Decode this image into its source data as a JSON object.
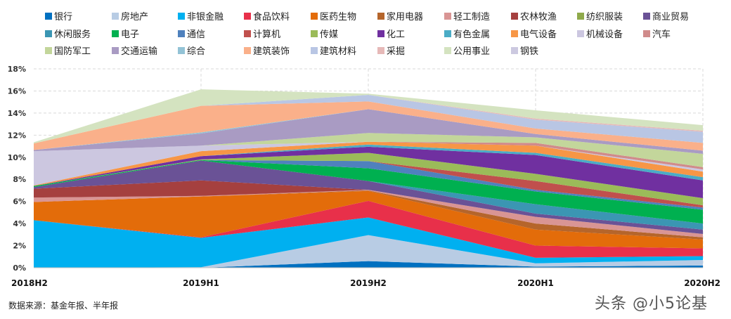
{
  "chart_data": {
    "type": "area",
    "stacked": true,
    "title": "",
    "xlabel": "",
    "ylabel": "",
    "categories": [
      "2018H2",
      "2019H1",
      "2019H2",
      "2020H1",
      "2020H2"
    ],
    "ylim": [
      0,
      18
    ],
    "yticks": [
      "0%",
      "2%",
      "4%",
      "6%",
      "8%",
      "10%",
      "12%",
      "14%",
      "16%",
      "18%"
    ],
    "grid": true,
    "legend_position": "top",
    "series": [
      {
        "name": "银行",
        "color": "#0070c0",
        "values": [
          0,
          0,
          0.6,
          0.1,
          0.2
        ]
      },
      {
        "name": "房地产",
        "color": "#b8cce4",
        "values": [
          0,
          0.05,
          2.35,
          0.3,
          0.5
        ]
      },
      {
        "name": "非银金融",
        "color": "#00b0f0",
        "values": [
          4.3,
          2.65,
          1.6,
          0.5,
          0.35
        ]
      },
      {
        "name": "食品饮料",
        "color": "#e8304a",
        "values": [
          0,
          0.05,
          1.5,
          1.1,
          0.7
        ]
      },
      {
        "name": "医药生物",
        "color": "#e36c0a",
        "values": [
          1.65,
          3.7,
          0.9,
          1.45,
          0.8
        ]
      },
      {
        "name": "家用电器",
        "color": "#b5652b",
        "values": [
          0,
          0,
          0.05,
          0.55,
          0.2
        ]
      },
      {
        "name": "轻工制造",
        "color": "#d99594",
        "values": [
          0.4,
          0.05,
          0.05,
          0.6,
          0.3
        ]
      },
      {
        "name": "农林牧渔",
        "color": "#a5403f",
        "values": [
          0.8,
          1.4,
          0,
          0,
          0
        ]
      },
      {
        "name": "纺织服装",
        "color": "#8faa4b",
        "values": [
          0,
          0,
          0,
          0,
          0
        ]
      },
      {
        "name": "商业贸易",
        "color": "#6a5296",
        "values": [
          0.15,
          1.8,
          0.8,
          0.3,
          0.4
        ]
      },
      {
        "name": "休闲服务",
        "color": "#3b96b3",
        "values": [
          0,
          0,
          0,
          0.85,
          0.55
        ]
      },
      {
        "name": "电子",
        "color": "#00b050",
        "values": [
          0.1,
          0.05,
          1.15,
          1.15,
          1.25
        ]
      },
      {
        "name": "通信",
        "color": "#4f81bd",
        "values": [
          0,
          0,
          0.65,
          0.15,
          0.2
        ]
      },
      {
        "name": "计算机",
        "color": "#c0504d",
        "values": [
          0,
          0,
          0,
          0.8,
          0.2
        ]
      },
      {
        "name": "传媒",
        "color": "#9bbb59",
        "values": [
          0,
          0.05,
          0.75,
          0.65,
          0.65
        ]
      },
      {
        "name": "化工",
        "color": "#7030a0",
        "values": [
          0,
          0.3,
          0.55,
          1.7,
          1.6
        ]
      },
      {
        "name": "有色金属",
        "color": "#4bacc6",
        "values": [
          0,
          0,
          0.2,
          0.2,
          0.3
        ]
      },
      {
        "name": "电气设备",
        "color": "#f79646",
        "values": [
          0.05,
          0.45,
          0.25,
          0.65,
          0.5
        ]
      },
      {
        "name": "机械设备",
        "color": "#ccc7e0",
        "values": [
          3.1,
          0.5,
          0,
          0,
          0.2
        ]
      },
      {
        "name": "汽车",
        "color": "#d08b8b",
        "values": [
          0,
          0,
          0,
          0.25,
          0.2
        ]
      },
      {
        "name": "国防军工",
        "color": "#c3d69b",
        "values": [
          0,
          0,
          0.8,
          0.5,
          1.2
        ]
      },
      {
        "name": "交通运输",
        "color": "#a99bc3",
        "values": [
          0.1,
          1.1,
          2.15,
          0.3,
          0.3
        ]
      },
      {
        "name": "综合",
        "color": "#93c3d6",
        "values": [
          0,
          0.1,
          0,
          0,
          0
        ]
      },
      {
        "name": "建筑装饰",
        "color": "#fab08a",
        "values": [
          0.6,
          2.4,
          0.7,
          0.5,
          0.7
        ]
      },
      {
        "name": "建筑材料",
        "color": "#b9c6e4",
        "values": [
          0,
          0,
          0.6,
          0.8,
          1.0
        ]
      },
      {
        "name": "采掘",
        "color": "#e6b9b8",
        "values": [
          0,
          0,
          0,
          0.1,
          0.1
        ]
      },
      {
        "name": "公用事业",
        "color": "#d4e3c0",
        "values": [
          0.1,
          1.5,
          0.1,
          0.75,
          0.5
        ]
      },
      {
        "name": "钢铁",
        "color": "#ccc9e0",
        "values": [
          0,
          0,
          0,
          0,
          0
        ]
      }
    ]
  },
  "source": "数据来源：基金年报、半年报",
  "watermark": "头条 @小5论基"
}
